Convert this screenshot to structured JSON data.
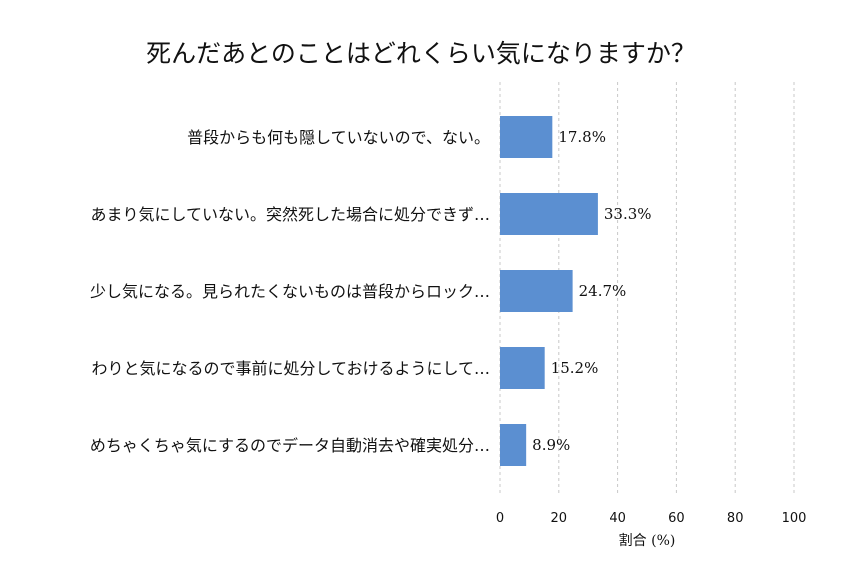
{
  "chart_data": {
    "type": "bar",
    "orientation": "horizontal",
    "title": "死んだあとのことはどれくらい気になりますか？",
    "categories": [
      "普段からも何も隠していないので、ない。",
      "あまり気にしていない。突然死した場合に処分できず…",
      "少し気になる。見られたくないものは普段からロック…",
      "わりと気になるので事前に処分しておけるようにして…",
      "めちゃくちゃ気にするのでデータ自動消去や確実処分…"
    ],
    "values": [
      17.8,
      33.3,
      24.7,
      15.2,
      8.9
    ],
    "value_labels": [
      "17.8%",
      "33.3%",
      "24.7%",
      "15.2%",
      "8.9%"
    ],
    "xlabel": "割合 (%)",
    "ylabel": "",
    "xlim": [
      0,
      100
    ],
    "xticks": [
      0,
      20,
      40,
      60,
      80,
      100
    ],
    "grid": "vertical-dashed",
    "bar_color": "#5b8fd1"
  }
}
